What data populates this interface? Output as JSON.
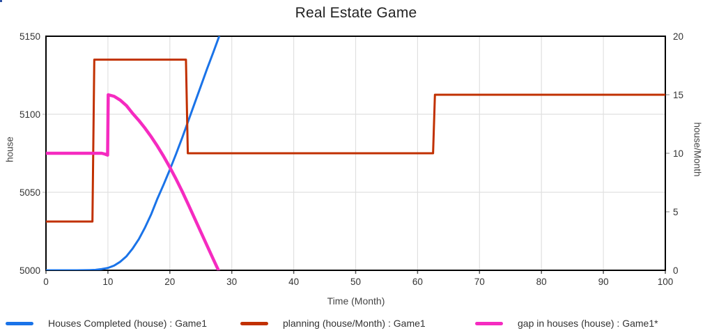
{
  "chart_data": {
    "type": "line",
    "title": "Real Estate Game",
    "xlabel": "Time (Month)",
    "legend_position": "bottom",
    "grid": true,
    "grid_color": "#e0e0e0",
    "frame_color": "#000000",
    "tick_text_color": "#333333",
    "x_axis": {
      "range": [
        0,
        100
      ],
      "ticks": [
        0,
        10,
        20,
        30,
        40,
        50,
        60,
        70,
        80,
        90,
        100
      ]
    },
    "left_axis": {
      "label": "house",
      "range": [
        5000,
        5150
      ],
      "ticks": [
        5000,
        5050,
        5100,
        5150
      ],
      "gridline_ticks": [
        5050,
        5100
      ]
    },
    "right_axis": {
      "label": "house/Month",
      "range": [
        0,
        20
      ],
      "ticks": [
        0,
        5,
        10,
        15,
        20
      ]
    },
    "series": [
      {
        "name": "Houses Completed (house) : Game1",
        "color": "#1a73e8",
        "axis": "left",
        "width": 3,
        "points": [
          [
            0,
            5000
          ],
          [
            5,
            5000
          ],
          [
            7,
            5000.1
          ],
          [
            8,
            5000.3
          ],
          [
            9,
            5000.8
          ],
          [
            10,
            5001.5
          ],
          [
            11,
            5003
          ],
          [
            12,
            5005.5
          ],
          [
            13,
            5009
          ],
          [
            14,
            5014
          ],
          [
            15,
            5020
          ],
          [
            16,
            5027.5
          ],
          [
            17,
            5036
          ],
          [
            18,
            5046
          ],
          [
            19,
            5055
          ],
          [
            20,
            5064.5
          ],
          [
            21,
            5074.5
          ],
          [
            22,
            5085
          ],
          [
            23,
            5096
          ],
          [
            24,
            5107
          ],
          [
            25,
            5118
          ],
          [
            26,
            5129
          ],
          [
            27,
            5139.5
          ],
          [
            28.2,
            5152.5
          ]
        ]
      },
      {
        "name": "planning (house/Month) : Game1",
        "color": "#c13000",
        "axis": "right",
        "width": 3,
        "points": [
          [
            0,
            4.17
          ],
          [
            7.5,
            4.17
          ],
          [
            7.8,
            18
          ],
          [
            22.6,
            18
          ],
          [
            22.9,
            10
          ],
          [
            62.5,
            10
          ],
          [
            62.8,
            15
          ],
          [
            100,
            15
          ]
        ]
      },
      {
        "name": "gap in houses (house) : Game1*",
        "color": "#f52bc0",
        "axis": "left",
        "width": 4.5,
        "points": [
          [
            0,
            5075
          ],
          [
            9,
            5075
          ],
          [
            9.5,
            5074.5
          ],
          [
            9.95,
            5073.8
          ],
          [
            10.05,
            5112.5
          ],
          [
            11,
            5111.5
          ],
          [
            12,
            5109
          ],
          [
            13,
            5105.5
          ],
          [
            14,
            5100.5
          ],
          [
            15,
            5096
          ],
          [
            16,
            5091
          ],
          [
            17,
            5085.5
          ],
          [
            18,
            5079.5
          ],
          [
            19,
            5073
          ],
          [
            20,
            5066
          ],
          [
            21,
            5058.5
          ],
          [
            22,
            5050.5
          ],
          [
            23,
            5042
          ],
          [
            24,
            5033.3
          ],
          [
            25,
            5024.6
          ],
          [
            26,
            5015.9
          ],
          [
            27,
            5007.2
          ],
          [
            27.85,
            5000
          ]
        ]
      }
    ]
  }
}
